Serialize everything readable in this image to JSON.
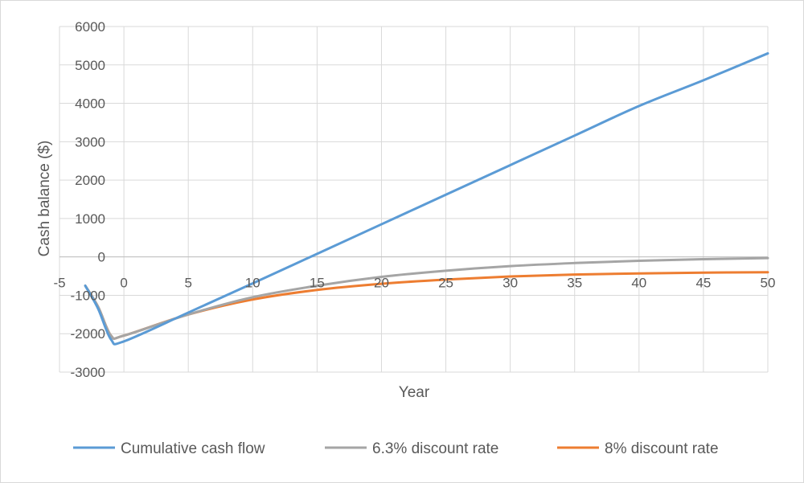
{
  "chart_data": {
    "type": "line",
    "xlabel": "Year",
    "ylabel": "Cash balance ($)",
    "xlim": [
      -5,
      50
    ],
    "ylim": [
      -3000,
      6000
    ],
    "xticks": [
      -5,
      0,
      5,
      10,
      15,
      20,
      25,
      30,
      35,
      40,
      45,
      50
    ],
    "yticks": [
      -3000,
      -2000,
      -1000,
      0,
      1000,
      2000,
      3000,
      4000,
      5000,
      6000
    ],
    "grid": true,
    "legend_position": "bottom",
    "series": [
      {
        "name": "Cumulative cash flow",
        "color": "#5b9bd5",
        "x": [
          -3,
          -2,
          -1,
          0,
          5,
          10,
          15,
          20,
          25,
          30,
          35,
          40,
          45,
          50
        ],
        "y": [
          -750,
          -1350,
          -2150,
          -2200,
          -1450,
          -690,
          80,
          850,
          1620,
          2390,
          3160,
          3930,
          4600,
          5300
        ]
      },
      {
        "name": "6.3% discount rate",
        "color": "#a5a5a5",
        "x": [
          -3,
          -2,
          -1,
          0,
          5,
          10,
          15,
          20,
          25,
          30,
          35,
          40,
          45,
          50
        ],
        "y": [
          -750,
          -1300,
          -2050,
          -2050,
          -1500,
          -1050,
          -750,
          -520,
          -360,
          -240,
          -160,
          -100,
          -60,
          -30
        ]
      },
      {
        "name": "8% discount rate",
        "color": "#ed7d31",
        "x": [
          -3,
          -2,
          -1,
          0,
          5,
          10,
          15,
          20,
          25,
          30,
          35,
          40,
          45,
          50
        ],
        "y": [
          -750,
          -1300,
          -2050,
          -2050,
          -1500,
          -1110,
          -860,
          -700,
          -590,
          -510,
          -460,
          -430,
          -410,
          -400
        ]
      }
    ]
  }
}
